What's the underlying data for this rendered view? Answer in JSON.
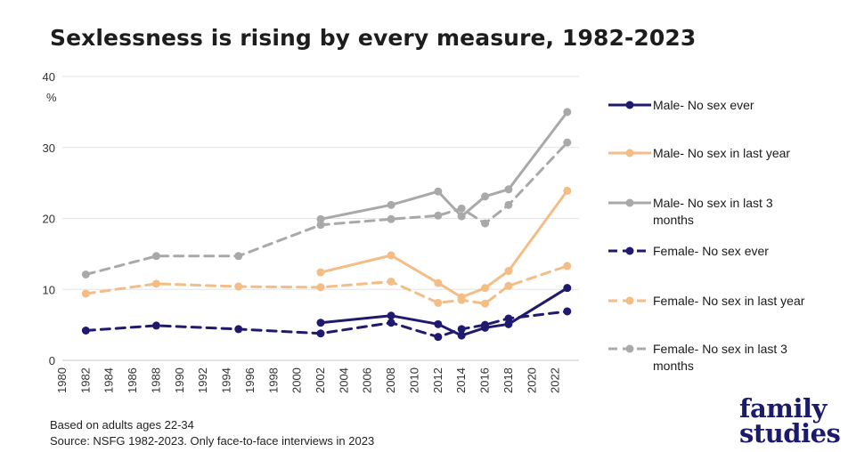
{
  "chart_data": {
    "type": "line",
    "title": "Sexlessness is rising by every measure, 1982-2023",
    "ylabel": "%",
    "xlabel": "",
    "ylim": [
      0,
      40
    ],
    "yticks": [
      0,
      10,
      20,
      30,
      40
    ],
    "xlim": [
      1980,
      2024
    ],
    "xticks": [
      1980,
      1982,
      1984,
      1986,
      1988,
      1990,
      1992,
      1994,
      1996,
      1998,
      2000,
      2002,
      2004,
      2006,
      2008,
      2010,
      2012,
      2014,
      2016,
      2018,
      2020,
      2022
    ],
    "grid": "horizontal",
    "legend_position": "right",
    "series": [
      {
        "name": "Male-  No sex ever",
        "color": "#1f1a6e",
        "dash": "solid",
        "x": [
          2002,
          2008,
          2012,
          2014,
          2016,
          2018,
          2023
        ],
        "y": [
          5.3,
          6.3,
          5.1,
          3.5,
          4.6,
          5.1,
          10.2
        ]
      },
      {
        "name": "Male-  No sex in last year",
        "color": "#f4bd86",
        "dash": "solid",
        "x": [
          2002,
          2008,
          2012,
          2014,
          2016,
          2018,
          2023
        ],
        "y": [
          12.4,
          14.8,
          10.9,
          8.9,
          10.2,
          12.6,
          23.9
        ]
      },
      {
        "name": "Male-  No sex in last 3 months",
        "color": "#a9a9a9",
        "dash": "solid",
        "x": [
          2002,
          2008,
          2012,
          2014,
          2016,
          2018,
          2023
        ],
        "y": [
          19.9,
          21.9,
          23.8,
          20.3,
          23.1,
          24.1,
          35.0
        ]
      },
      {
        "name": "Female-  No sex ever",
        "color": "#1f1a6e",
        "dash": "dashed",
        "x": [
          1982,
          1988,
          1995,
          2002,
          2008,
          2012,
          2014,
          2016,
          2018,
          2023
        ],
        "y": [
          4.2,
          4.9,
          4.4,
          3.8,
          5.3,
          3.3,
          4.4,
          5.0,
          5.9,
          6.9
        ]
      },
      {
        "name": "Female-  No sex in last year",
        "color": "#f4bd86",
        "dash": "dashed",
        "x": [
          1982,
          1988,
          1995,
          2002,
          2008,
          2012,
          2014,
          2016,
          2018,
          2023
        ],
        "y": [
          9.4,
          10.8,
          10.4,
          10.3,
          11.1,
          8.1,
          8.5,
          8.0,
          10.5,
          13.3
        ]
      },
      {
        "name": "Female-  No sex in last 3 months",
        "color": "#a9a9a9",
        "dash": "dashed",
        "x": [
          1982,
          1988,
          1995,
          2002,
          2008,
          2012,
          2014,
          2016,
          2018,
          2023
        ],
        "y": [
          12.1,
          14.7,
          14.7,
          19.1,
          19.9,
          20.4,
          21.4,
          19.3,
          21.9,
          30.7
        ]
      }
    ]
  },
  "legend_lines": [
    [
      "Male-  No sex ever"
    ],
    [
      "Male-  No sex in last year"
    ],
    [
      "Male-  No sex in last 3",
      "months"
    ],
    [
      "Female-  No sex ever"
    ],
    [
      "Female-  No sex in last year"
    ],
    [
      "Female-  No sex in last 3",
      "months"
    ]
  ],
  "notes": {
    "line1": "Based on adults ages 22-34",
    "line2": "Source: NSFG 1982-2023. Only face-to-face interviews in 2023"
  },
  "brand": {
    "line1": "family",
    "line2": "studies"
  }
}
